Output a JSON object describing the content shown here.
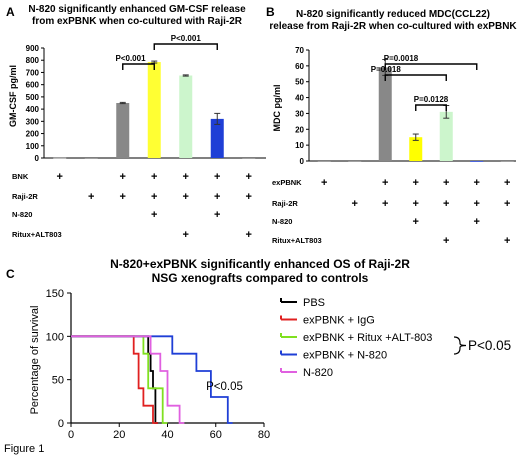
{
  "figure_label": "Figure 1",
  "chart_data": [
    {
      "panel": "A",
      "type": "bar",
      "title": [
        "N-820 significantly enhanced GM-CSF release",
        "from exPBNK when co-cultured with Raji-2R"
      ],
      "ylabel": "GM-CSF pg/ml",
      "ylim": [
        0,
        900
      ],
      "yticks": [
        0,
        100,
        200,
        300,
        400,
        500,
        600,
        700,
        800,
        900
      ],
      "values": [
        2,
        0,
        450,
        785,
        675,
        320,
        0
      ],
      "errors": [
        0,
        0,
        5,
        8,
        5,
        45,
        0
      ],
      "colors": [
        "#888888",
        "#888888",
        "#888888",
        "#ffff33",
        "#ccf5cc",
        "#1f3fd6",
        "#888888"
      ],
      "conditions": [
        {
          "label": "BNK",
          "marks": [
            true,
            false,
            true,
            true,
            true,
            true,
            true
          ]
        },
        {
          "label": "Raji-2R",
          "marks": [
            false,
            true,
            true,
            true,
            true,
            true,
            true
          ]
        },
        {
          "label": "N-820",
          "marks": [
            false,
            false,
            false,
            true,
            false,
            true,
            false
          ]
        },
        {
          "label": "Ritux+ALT803",
          "marks": [
            false,
            false,
            false,
            false,
            true,
            false,
            true
          ]
        }
      ],
      "mark_symbol": "+",
      "comparisons": [
        {
          "from": 2,
          "to": 3,
          "label": "P<0.001"
        },
        {
          "from": 3,
          "to": 5,
          "label": "P<0.001"
        }
      ]
    },
    {
      "panel": "B",
      "type": "bar",
      "title": [
        "N-820 significantly reduced MDC(CCL22)",
        "release from Raji-2R when co-cultured with exPBNK"
      ],
      "ylabel": "MDC pg/ml",
      "ylim": [
        0,
        70
      ],
      "yticks": [
        0,
        10,
        20,
        30,
        40,
        50,
        60,
        70
      ],
      "values": [
        0,
        0,
        59,
        15,
        31,
        0,
        0
      ],
      "errors": [
        0,
        0,
        5,
        2,
        4,
        0,
        0
      ],
      "colors": [
        "#888888",
        "#888888",
        "#888888",
        "#ffff00",
        "#ccf5cc",
        "#1f3fd6",
        "#888888"
      ],
      "conditions": [
        {
          "label": "exPBNK",
          "marks": [
            true,
            false,
            true,
            true,
            true,
            true,
            true
          ]
        },
        {
          "label": "Raji-2R",
          "marks": [
            false,
            true,
            true,
            true,
            true,
            true,
            true
          ]
        },
        {
          "label": "N-820",
          "marks": [
            false,
            false,
            false,
            true,
            false,
            true,
            false
          ]
        },
        {
          "label": "Ritux+ALT803",
          "marks": [
            false,
            false,
            false,
            false,
            true,
            false,
            true
          ]
        }
      ],
      "mark_symbol": "+",
      "comparisons": [
        {
          "from": 2,
          "to": 5,
          "label": "P=0.0018"
        },
        {
          "from": 2,
          "to": 4,
          "label": "P=0.018"
        },
        {
          "from": 3,
          "to": 4,
          "label": "P=0.0128"
        }
      ]
    },
    {
      "panel": "C",
      "type": "line",
      "title": [
        "N-820+exPBNK significantly enhanced OS of Raji-2R",
        "NSG xenografts compared to controls"
      ],
      "xlabel": "",
      "ylabel": "Percentage of survival",
      "xlim": [
        0,
        80
      ],
      "ylim": [
        0,
        150
      ],
      "xticks": [
        0,
        20,
        40,
        60,
        80
      ],
      "yticks": [
        0,
        50,
        100,
        150
      ],
      "series": [
        {
          "name": "PBS",
          "color": "#000000",
          "x": [
            0,
            32,
            32,
            33,
            33,
            34,
            34,
            35,
            35,
            36
          ],
          "y": [
            100,
            100,
            80,
            80,
            60,
            60,
            40,
            40,
            0,
            0
          ]
        },
        {
          "name": "exPBNK + IgG",
          "color": "#e02020",
          "x": [
            0,
            26,
            26,
            28,
            28,
            30,
            30,
            34,
            34,
            36
          ],
          "y": [
            100,
            100,
            80,
            80,
            40,
            40,
            20,
            20,
            0,
            0
          ]
        },
        {
          "name": "exPBNK + Ritux +ALT-803",
          "color": "#80e020",
          "x": [
            0,
            30,
            30,
            32,
            32,
            38,
            38,
            40
          ],
          "y": [
            100,
            100,
            80,
            80,
            40,
            40,
            0,
            0
          ]
        },
        {
          "name": "exPBNK + N-820",
          "color": "#1f3fd6",
          "x": [
            0,
            42,
            42,
            52,
            52,
            58,
            58,
            65,
            65,
            67
          ],
          "y": [
            100,
            100,
            80,
            80,
            60,
            60,
            30,
            30,
            0,
            0
          ]
        },
        {
          "name": "N-820",
          "color": "#e060e0",
          "x": [
            0,
            33,
            33,
            37,
            37,
            40,
            40,
            45,
            45,
            47
          ],
          "y": [
            100,
            100,
            80,
            80,
            60,
            60,
            20,
            20,
            0,
            0
          ]
        }
      ],
      "annotations": [
        {
          "text": "P<0.05",
          "x": 56,
          "y": 38
        },
        {
          "text": "P<0.05",
          "target": "legend"
        }
      ]
    }
  ]
}
